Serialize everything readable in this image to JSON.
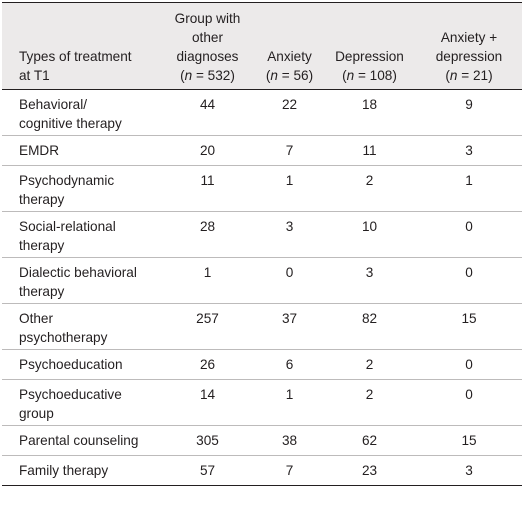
{
  "headers": {
    "treatment": [
      "Types of treatment",
      "at T1"
    ],
    "other": [
      "Group with",
      "other",
      "diagnoses",
      "(",
      "n",
      " = 532)"
    ],
    "anxiety": [
      "Anxiety",
      "(",
      "n",
      " = 56)"
    ],
    "depression": [
      "Depression",
      "(",
      "n",
      " = 108)"
    ],
    "anxdep": [
      "Anxiety +",
      "depression",
      "(",
      "n",
      " = 21)"
    ]
  },
  "rows": [
    {
      "label": [
        "Behavioral/",
        "cognitive therapy"
      ],
      "values": [
        "44",
        "22",
        "18",
        "9"
      ]
    },
    {
      "label": [
        "EMDR"
      ],
      "values": [
        "20",
        "7",
        "11",
        "3"
      ]
    },
    {
      "label": [
        "Psychodynamic",
        "therapy"
      ],
      "values": [
        "11",
        "1",
        "2",
        "1"
      ]
    },
    {
      "label": [
        "Social-relational",
        "therapy"
      ],
      "values": [
        "28",
        "3",
        "10",
        "0"
      ]
    },
    {
      "label": [
        "Dialectic behavioral",
        "therapy"
      ],
      "values": [
        "1",
        "0",
        "3",
        "0"
      ]
    },
    {
      "label": [
        "Other",
        "psychotherapy"
      ],
      "values": [
        "257",
        "37",
        "82",
        "15"
      ]
    },
    {
      "label": [
        "Psychoeducation"
      ],
      "values": [
        "26",
        "6",
        "2",
        "0"
      ]
    },
    {
      "label": [
        "Psychoeducative",
        "group"
      ],
      "values": [
        "14",
        "1",
        "2",
        "0"
      ]
    },
    {
      "label": [
        "Parental counseling"
      ],
      "values": [
        "305",
        "38",
        "62",
        "15"
      ]
    },
    {
      "label": [
        "Family therapy"
      ],
      "values": [
        "57",
        "7",
        "23",
        "3"
      ]
    }
  ]
}
